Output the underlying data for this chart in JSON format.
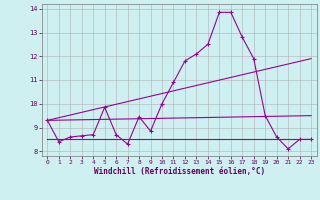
{
  "xlabel": "Windchill (Refroidissement éolien,°C)",
  "background_color": "#cff0f0",
  "grid_color": "#b0b0b0",
  "line_color": "#990099",
  "xlim": [
    -0.5,
    23.5
  ],
  "ylim": [
    7.8,
    14.2
  ],
  "yticks": [
    8,
    9,
    10,
    11,
    12,
    13,
    14
  ],
  "xticks": [
    0,
    1,
    2,
    3,
    4,
    5,
    6,
    7,
    8,
    9,
    10,
    11,
    12,
    13,
    14,
    15,
    16,
    17,
    18,
    19,
    20,
    21,
    22,
    23
  ],
  "series1_x": [
    0,
    1,
    2,
    3,
    4,
    5,
    6,
    7,
    8,
    9,
    10,
    11,
    12,
    13,
    14,
    15,
    16,
    17,
    18,
    19,
    20,
    21,
    22,
    23
  ],
  "series1_y": [
    9.3,
    8.4,
    8.6,
    8.65,
    8.7,
    9.85,
    8.7,
    8.3,
    9.45,
    8.85,
    10.0,
    10.9,
    11.8,
    12.1,
    12.5,
    13.85,
    13.85,
    12.8,
    11.9,
    9.5,
    8.6,
    8.1,
    8.5,
    8.5
  ],
  "series2_x": [
    0,
    23
  ],
  "series2_y": [
    8.5,
    8.5
  ],
  "series3_x": [
    0,
    23
  ],
  "series3_y": [
    9.3,
    11.9
  ],
  "series4_x": [
    0,
    23
  ],
  "series4_y": [
    9.3,
    9.5
  ]
}
